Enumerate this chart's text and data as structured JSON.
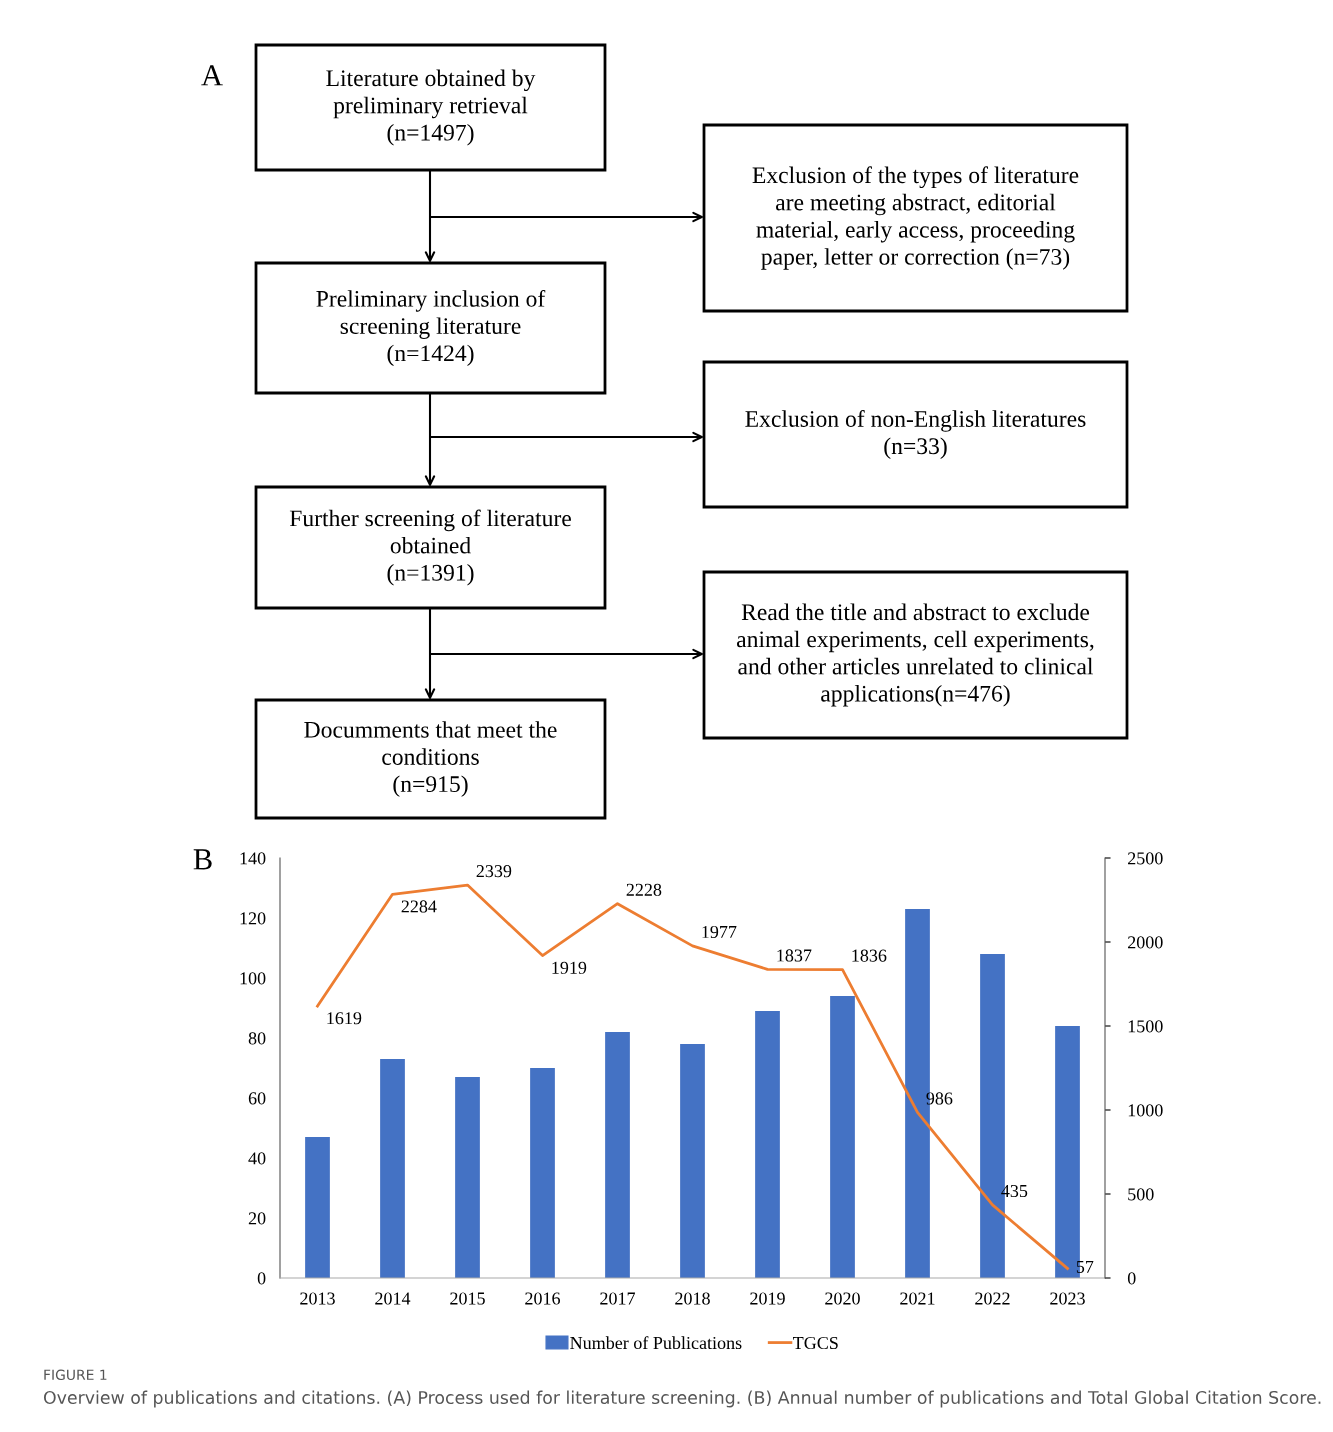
{
  "chart_data": [
    {
      "type": "other",
      "title": "A",
      "annotations": [
        "Literature obtained by\npreliminary retrieval\n(n=1497)",
        "Exclusion of the types of literature\nare meeting abstract, editorial\nmaterial, early access, proceeding\npaper, letter or correction (n=73)",
        "Preliminary inclusion of\nscreening literature\n(n=1424)",
        "Exclusion of non-English literatures\n(n=33)",
        "Further screening of literature\nobtained\n(n=1391)",
        "Read the title and abstract to exclude\nanimal experiments, cell experiments,\nand other articles unrelated to clinical\napplications(n=476)",
        "Documments that meet the\nconditions\n(n=915)"
      ]
    },
    {
      "type": "bar",
      "title": "B",
      "categories": [
        "2013",
        "2014",
        "2015",
        "2016",
        "2017",
        "2018",
        "2019",
        "2020",
        "2021",
        "2022",
        "2023"
      ],
      "series": [
        {
          "name": "Number of Publications",
          "type": "bar",
          "color": "#4472c4",
          "values": [
            47,
            73,
            67,
            70,
            82,
            78,
            89,
            94,
            123,
            108,
            84
          ]
        },
        {
          "name": "TGCS",
          "type": "line",
          "axis": "y2",
          "color": "#ed7d31",
          "values": [
            1619,
            2284,
            2339,
            1919,
            2228,
            1977,
            1837,
            1836,
            986,
            435,
            57
          ],
          "value_labels": [
            "1619",
            "2284",
            "2339",
            "1919",
            "2228",
            "1977",
            "1837",
            "1836",
            "986",
            "435",
            "57"
          ]
        }
      ],
      "ylim": [
        0,
        140
      ],
      "yticks": [
        0,
        20,
        40,
        60,
        80,
        100,
        120,
        140
      ],
      "y2lim": [
        0,
        2500
      ],
      "y2ticks": [
        0,
        500,
        1000,
        1500,
        2000,
        2500
      ],
      "legend": "bottom",
      "grid": false,
      "annotations": [
        "FIGURE 1",
        "Overview of publications and citations. (A) Process used for literature screening. (B) Annual number of publications and Total Global Citation Score."
      ]
    }
  ]
}
